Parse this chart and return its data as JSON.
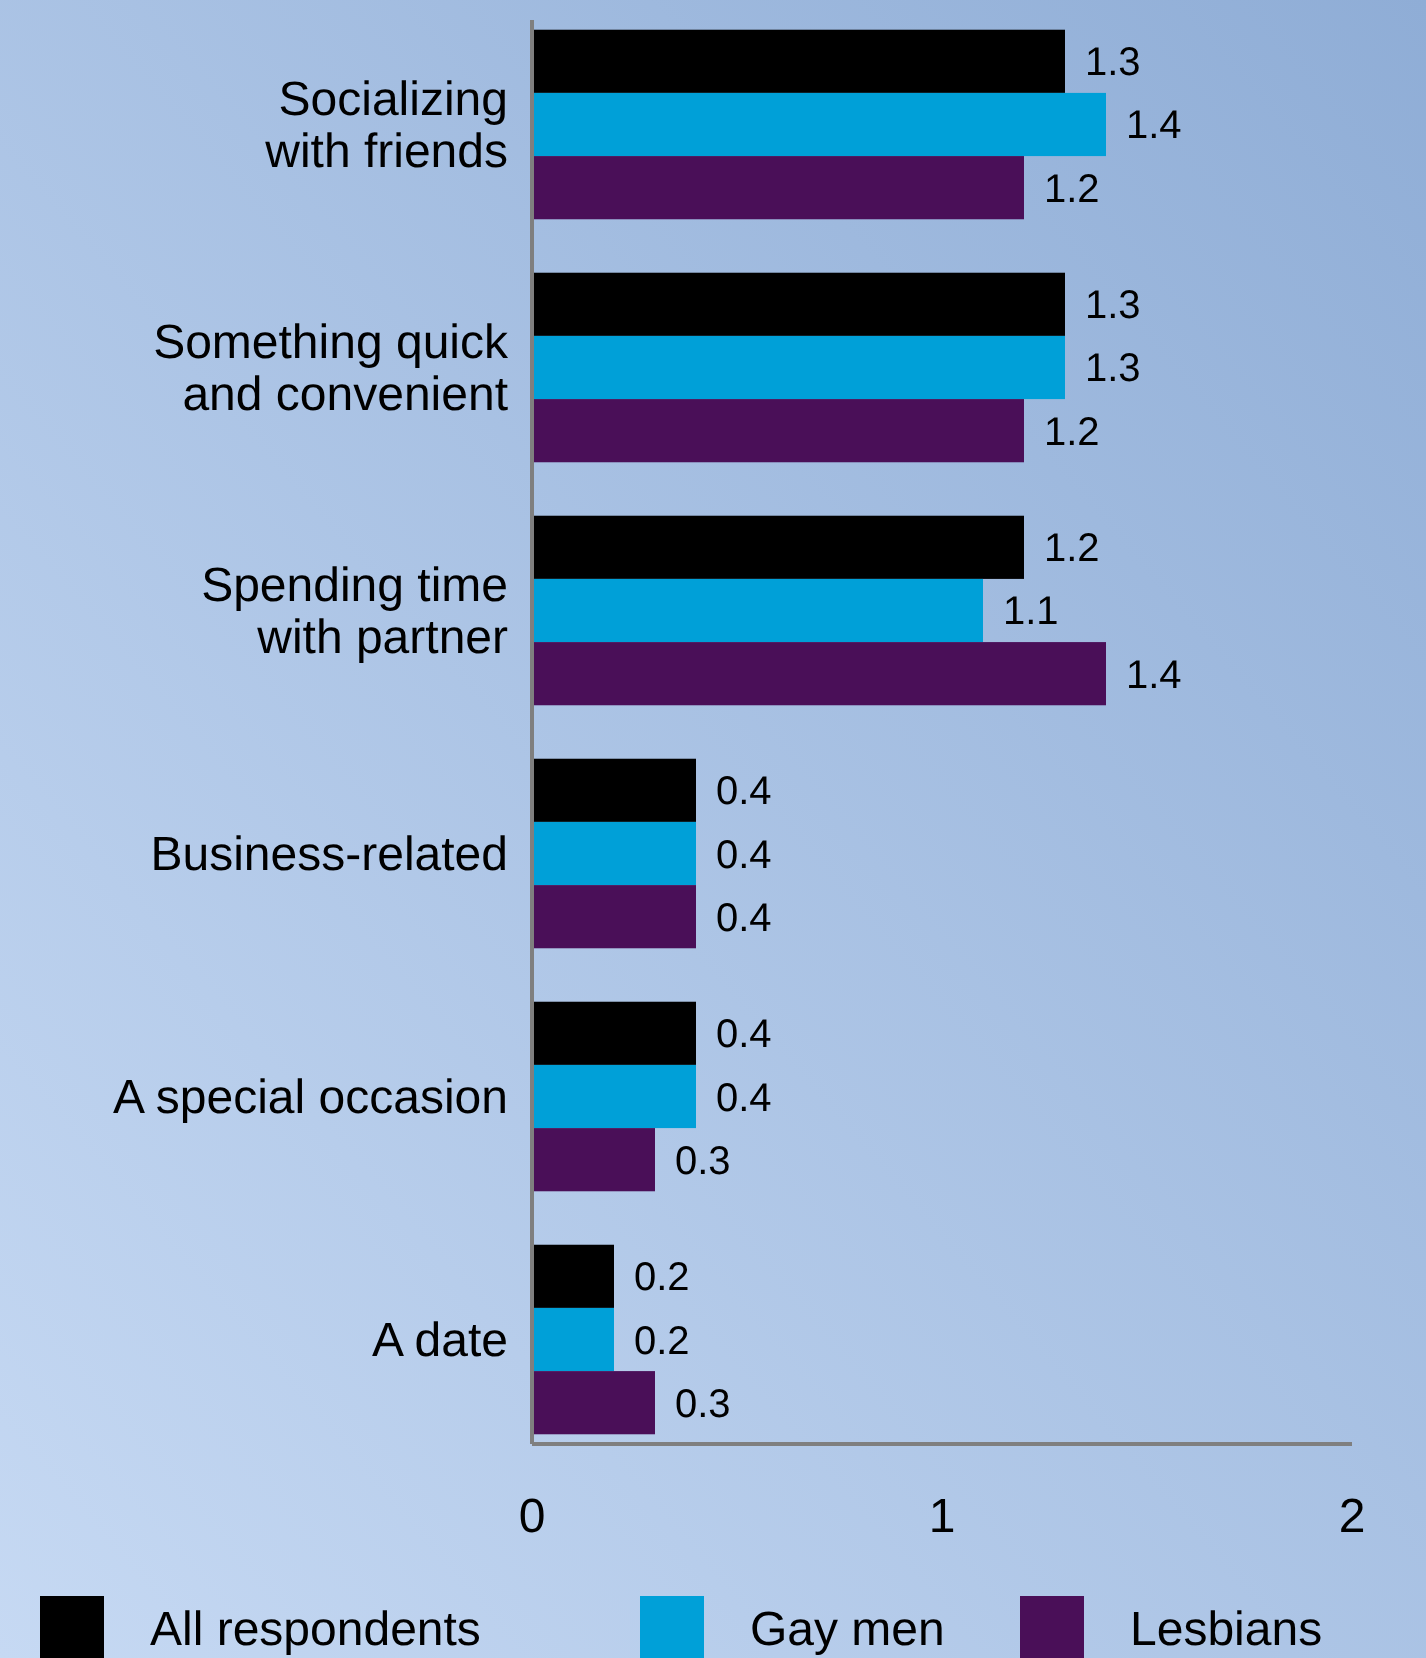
{
  "chart_data": {
    "type": "bar",
    "orientation": "horizontal",
    "categories": [
      "Socializing with friends",
      "Something quick and convenient",
      "Spending time with partner",
      "Business-related",
      "A special occasion",
      "A date"
    ],
    "series": [
      {
        "name": "All respondents",
        "color": "#000000",
        "values": [
          1.3,
          1.3,
          1.2,
          0.4,
          0.4,
          0.2
        ]
      },
      {
        "name": "Gay men",
        "color": "#00a0d8",
        "values": [
          1.4,
          1.3,
          1.1,
          0.4,
          0.4,
          0.2
        ]
      },
      {
        "name": "Lesbians",
        "color": "#4a0f58",
        "values": [
          1.2,
          1.2,
          1.4,
          0.4,
          0.3,
          0.3
        ]
      }
    ],
    "xlim": [
      0,
      2
    ],
    "xticks": [
      0,
      1,
      2
    ],
    "data_labels": true,
    "legend": "bottom",
    "grid": false
  }
}
